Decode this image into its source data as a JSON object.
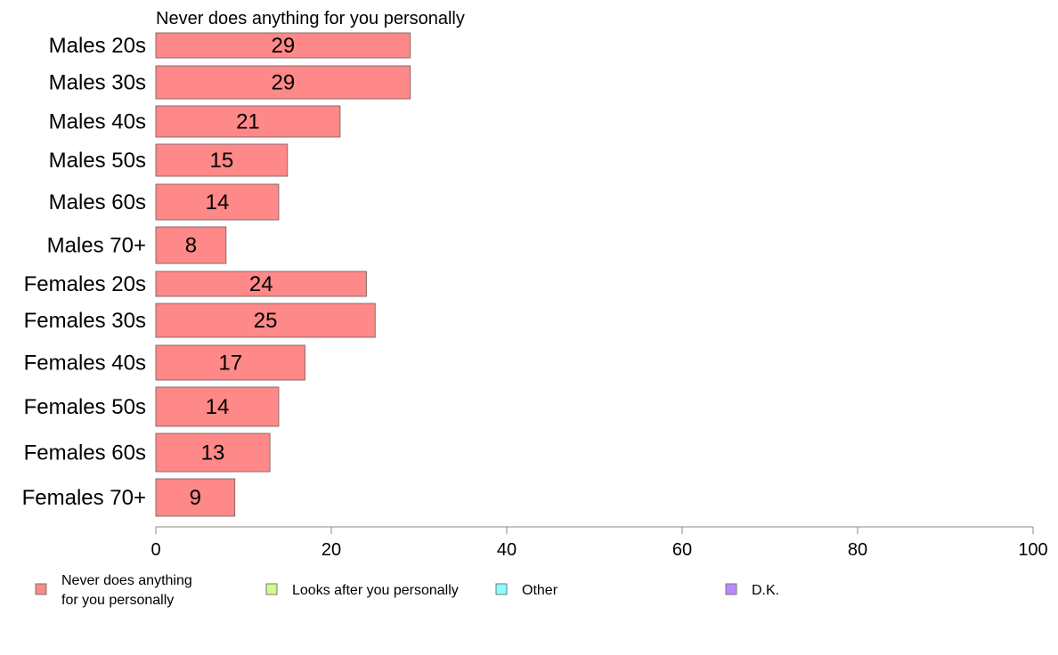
{
  "chart_data": {
    "type": "bar",
    "orientation": "horizontal",
    "title": "Never does anything for you personally",
    "categories": [
      "Males 20s",
      "Males 30s",
      "Males 40s",
      "Males 50s",
      "Males 60s",
      "Males 70+",
      "Females 20s",
      "Females 30s",
      "Females 40s",
      "Females 50s",
      "Females 60s",
      "Females 70+"
    ],
    "series": [
      {
        "name": "Never does anything for you personally",
        "values": [
          29,
          29,
          21,
          15,
          14,
          8,
          24,
          25,
          17,
          14,
          13,
          9
        ],
        "color": "#ff8888"
      }
    ],
    "x_ticks": [
      "0",
      "20",
      "40",
      "60",
      "80",
      "100"
    ],
    "xlim": [
      0,
      100
    ],
    "grid": false,
    "legend_position": "bottom",
    "legend": [
      {
        "lines": [
          "Never does anything",
          "for you personally"
        ],
        "color": "#ff8888"
      },
      {
        "lines": [
          "Looks after you personally"
        ],
        "color": "#ccff88"
      },
      {
        "lines": [
          "Other"
        ],
        "color": "#88ffff"
      },
      {
        "lines": [
          "D.K."
        ],
        "color": "#bb88ff"
      }
    ]
  }
}
